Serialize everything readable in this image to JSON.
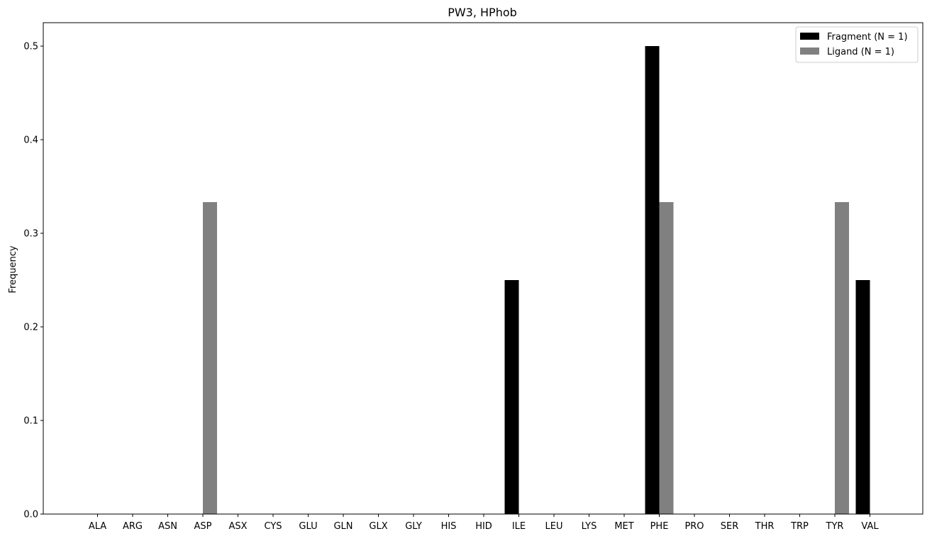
{
  "chart_data": {
    "type": "bar",
    "title": "PW3, HPhob",
    "xlabel": "",
    "ylabel": "Frequency",
    "ylim": [
      0,
      0.525
    ],
    "yticks": [
      0.0,
      0.1,
      0.2,
      0.3,
      0.4,
      0.5
    ],
    "ytick_labels": [
      "0.0",
      "0.1",
      "0.2",
      "0.3",
      "0.4",
      "0.5"
    ],
    "grid": false,
    "legend_position": "top-right",
    "categories": [
      "ALA",
      "ARG",
      "ASN",
      "ASP",
      "ASX",
      "CYS",
      "GLU",
      "GLN",
      "GLX",
      "GLY",
      "HIS",
      "HID",
      "ILE",
      "LEU",
      "LYS",
      "MET",
      "PHE",
      "PRO",
      "SER",
      "THR",
      "TRP",
      "TYR",
      "VAL"
    ],
    "series": [
      {
        "name": "Fragment (N = 1)",
        "color": "#000000",
        "values": [
          0,
          0,
          0,
          0,
          0,
          0,
          0,
          0,
          0,
          0,
          0,
          0,
          0.25,
          0,
          0,
          0,
          0.5,
          0,
          0,
          0,
          0,
          0,
          0.25
        ]
      },
      {
        "name": "Ligand (N = 1)",
        "color": "#808080",
        "values": [
          0,
          0,
          0,
          0.3333,
          0,
          0,
          0,
          0,
          0,
          0,
          0,
          0,
          0,
          0,
          0,
          0,
          0.3333,
          0,
          0,
          0,
          0,
          0.3333,
          0
        ]
      }
    ]
  }
}
